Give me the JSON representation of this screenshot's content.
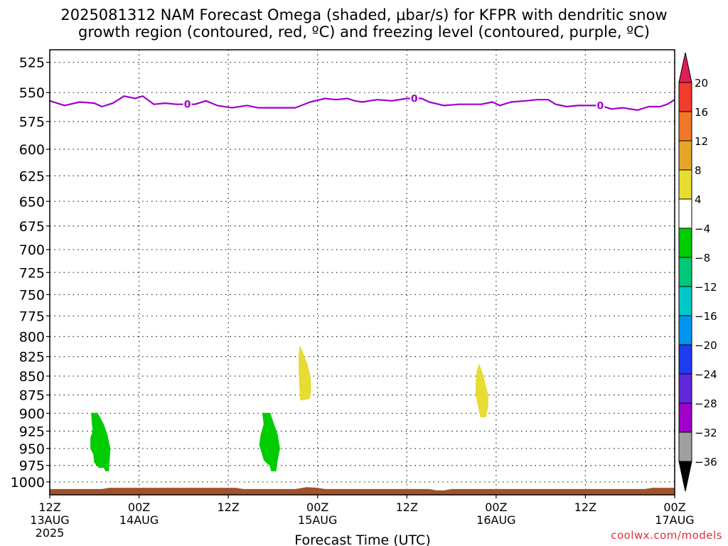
{
  "title_line1": "2025081312 NAM Forecast Omega (shaded, μbar/s) for KFPR with dendritic snow",
  "title_line2": "growth region (contoured, red, ºC) and freezing level (contoured, purple, ºC)",
  "credit": "coolwx.com/models",
  "chart_data": {
    "type": "contour",
    "xlabel": "Forecast Time (UTC)",
    "ylabel": "",
    "x_ticks": [
      {
        "hour": 0,
        "label1": "12Z",
        "label2": "13AUG",
        "label3": "2025"
      },
      {
        "hour": 12,
        "label1": "00Z",
        "label2": "14AUG",
        "label3": ""
      },
      {
        "hour": 24,
        "label1": "12Z",
        "label2": "",
        "label3": ""
      },
      {
        "hour": 36,
        "label1": "00Z",
        "label2": "15AUG",
        "label3": ""
      },
      {
        "hour": 48,
        "label1": "12Z",
        "label2": "",
        "label3": ""
      },
      {
        "hour": 60,
        "label1": "00Z",
        "label2": "16AUG",
        "label3": ""
      },
      {
        "hour": 72,
        "label1": "12Z",
        "label2": "",
        "label3": ""
      },
      {
        "hour": 84,
        "label1": "00Z",
        "label2": "17AUG",
        "label3": ""
      }
    ],
    "xlim": [
      0,
      84
    ],
    "y_ticks": [
      525,
      550,
      575,
      600,
      625,
      650,
      675,
      700,
      725,
      750,
      775,
      800,
      825,
      850,
      875,
      900,
      925,
      950,
      975,
      1000
    ],
    "ylim": [
      515,
      1020
    ],
    "y_scale": "log-pressure",
    "grid": true,
    "freezing_level": {
      "color": "#a000c8",
      "label": "0",
      "label_hours": [
        18.5,
        49,
        74
      ],
      "points": [
        [
          0,
          557
        ],
        [
          2,
          561
        ],
        [
          4,
          558
        ],
        [
          6,
          559
        ],
        [
          7,
          562
        ],
        [
          8.5,
          559
        ],
        [
          10,
          553
        ],
        [
          11.5,
          555
        ],
        [
          12.5,
          553
        ],
        [
          14,
          560
        ],
        [
          15.5,
          559
        ],
        [
          17,
          560
        ],
        [
          19.5,
          560
        ],
        [
          21,
          557
        ],
        [
          22.5,
          561
        ],
        [
          24.5,
          563
        ],
        [
          26.5,
          561
        ],
        [
          28,
          563
        ],
        [
          31,
          563
        ],
        [
          33,
          563
        ],
        [
          35,
          558
        ],
        [
          37,
          555
        ],
        [
          38.5,
          556
        ],
        [
          40,
          555
        ],
        [
          41,
          557
        ],
        [
          42,
          558
        ],
        [
          44,
          556
        ],
        [
          46,
          557
        ],
        [
          48,
          555
        ],
        [
          50,
          555
        ],
        [
          51,
          558
        ],
        [
          53,
          561
        ],
        [
          55,
          560
        ],
        [
          58,
          560
        ],
        [
          59.5,
          558
        ],
        [
          60.5,
          561
        ],
        [
          62,
          558
        ],
        [
          64,
          557
        ],
        [
          65.5,
          556
        ],
        [
          67,
          556
        ],
        [
          68,
          560
        ],
        [
          69.5,
          562
        ],
        [
          71,
          561
        ],
        [
          72.5,
          561
        ],
        [
          74,
          561
        ],
        [
          75.5,
          564
        ],
        [
          77,
          563
        ],
        [
          79,
          565
        ],
        [
          80.5,
          562
        ],
        [
          82,
          562
        ],
        [
          83,
          560
        ],
        [
          84,
          556
        ]
      ]
    },
    "omega_regions": [
      {
        "value_range": [
          -8,
          -4
        ],
        "color": "#00cc00",
        "points": [
          [
            5.6,
            900
          ],
          [
            6.4,
            900
          ],
          [
            7.2,
            915
          ],
          [
            7.7,
            930
          ],
          [
            8.1,
            950
          ],
          [
            8.0,
            967
          ],
          [
            7.9,
            983
          ],
          [
            7.5,
            983
          ],
          [
            7.3,
            978
          ],
          [
            6.6,
            978
          ],
          [
            6.0,
            970
          ],
          [
            5.9,
            958
          ],
          [
            5.5,
            950
          ],
          [
            5.5,
            935
          ],
          [
            5.8,
            925
          ]
        ]
      },
      {
        "value_range": [
          -8,
          -4
        ],
        "color": "#00cc00",
        "points": [
          [
            28.6,
            900
          ],
          [
            29.6,
            900
          ],
          [
            30.1,
            915
          ],
          [
            30.6,
            930
          ],
          [
            30.9,
            950
          ],
          [
            30.6,
            967
          ],
          [
            30.4,
            983
          ],
          [
            29.8,
            983
          ],
          [
            29.6,
            975
          ],
          [
            28.8,
            967
          ],
          [
            28.5,
            955
          ],
          [
            28.2,
            945
          ],
          [
            28.4,
            930
          ],
          [
            28.8,
            915
          ]
        ]
      },
      {
        "value_range": [
          4,
          8
        ],
        "color": "#e6dc32",
        "points": [
          [
            33.6,
            812
          ],
          [
            34.0,
            820
          ],
          [
            34.6,
            835
          ],
          [
            35.0,
            850
          ],
          [
            35.1,
            868
          ],
          [
            34.9,
            880
          ],
          [
            33.7,
            882
          ],
          [
            33.6,
            865
          ],
          [
            33.5,
            845
          ],
          [
            33.5,
            825
          ]
        ]
      },
      {
        "value_range": [
          4,
          8
        ],
        "color": "#e6dc32",
        "points": [
          [
            57.7,
            835
          ],
          [
            58.1,
            845
          ],
          [
            58.5,
            860
          ],
          [
            58.9,
            875
          ],
          [
            58.9,
            890
          ],
          [
            58.6,
            905
          ],
          [
            57.9,
            905
          ],
          [
            57.6,
            890
          ],
          [
            57.3,
            875
          ],
          [
            57.3,
            860
          ],
          [
            57.4,
            845
          ]
        ]
      }
    ],
    "terrain": {
      "color": "#a0522d",
      "top_points": [
        [
          0,
          1011
        ],
        [
          7,
          1011
        ],
        [
          8,
          1009
        ],
        [
          25,
          1009
        ],
        [
          26,
          1011
        ],
        [
          33,
          1011
        ],
        [
          34.5,
          1008
        ],
        [
          36,
          1009
        ],
        [
          37,
          1011
        ],
        [
          51,
          1011
        ],
        [
          52,
          1013
        ],
        [
          53,
          1013
        ],
        [
          54,
          1011
        ],
        [
          80,
          1011
        ],
        [
          81,
          1009
        ],
        [
          84,
          1009
        ]
      ]
    },
    "colorbar": {
      "levels": [
        "20",
        "16",
        "12",
        "8",
        "4",
        "−4",
        "−8",
        "−12",
        "−16",
        "−20",
        "−24",
        "−28",
        "−32",
        "−36"
      ],
      "colors": [
        "#e01e5a",
        "#f03c2d",
        "#f07828",
        "#e6a528",
        "#e6dc32",
        "#ffffff",
        "#00cc00",
        "#00c878",
        "#00c8c8",
        "#0096f0",
        "#1e3cf0",
        "#6428dc",
        "#a000c8",
        "#a0a0a0",
        "#000000"
      ]
    }
  }
}
